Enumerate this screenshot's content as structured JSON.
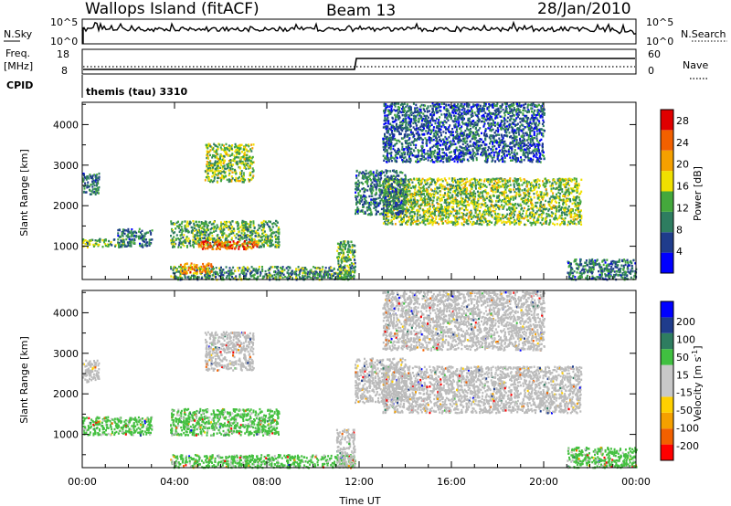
{
  "header": {
    "title": "Wallops Island (fitACF)",
    "beam": "Beam 13",
    "date": "28/Jan/2010"
  },
  "top_panels": {
    "nsky_label": "N.Sky",
    "nsky_ticks": [
      "10^5",
      "10^0"
    ],
    "nsearch_label": "N.Search",
    "nsearch_ticks": [
      "10^5",
      "10^0"
    ],
    "freq_label_1": "Freq.",
    "freq_label_2": "[MHz]",
    "freq_ticks": [
      "18",
      "8"
    ],
    "nave_label": "Nave",
    "nave_ticks": [
      "60",
      "0"
    ],
    "cpid_label": "CPID",
    "cpid_text": "themis (tau) 3310"
  },
  "colors": {
    "power_scale": [
      "#0000ff",
      "#1f3c8c",
      "#2e7d60",
      "#44a83c",
      "#f0e000",
      "#f5a000",
      "#f26000",
      "#e00000"
    ],
    "velocity_scale": [
      "#ff0000",
      "#f26000",
      "#f5a000",
      "#ffd000",
      "#c8c8c8",
      "#c8c8c8",
      "#40c040",
      "#2e7d60",
      "#1f3c8c",
      "#0000ff"
    ],
    "ground_scatter": "#bbbbbb"
  },
  "chart_data": [
    {
      "type": "heatmap",
      "name": "power",
      "xlabel": "",
      "ylabel": "Slant Range [km]",
      "x_ticks": [
        "00:00",
        "04:00",
        "08:00",
        "12:00",
        "16:00",
        "20:00",
        "00:00"
      ],
      "xlim_hours": [
        0,
        24
      ],
      "y_ticks": [
        1000,
        2000,
        3000,
        4000
      ],
      "ylim_km": [
        180,
        4550
      ],
      "colorbar_label": "Power [dB]",
      "colorbar_ticks": [
        4,
        8,
        12,
        16,
        20,
        24,
        28
      ],
      "colorbar_range": [
        0,
        30
      ],
      "regions": [
        {
          "t": [
            0.0,
            0.7
          ],
          "r": [
            2300,
            2850
          ],
          "level": 8
        },
        {
          "t": [
            0.0,
            1.8
          ],
          "r": [
            1000,
            1200
          ],
          "level": 12
        },
        {
          "t": [
            1.5,
            3.0
          ],
          "r": [
            1000,
            1450
          ],
          "level": 8
        },
        {
          "t": [
            3.8,
            8.5
          ],
          "r": [
            1000,
            1650
          ],
          "level": 12
        },
        {
          "t": [
            5.0,
            7.6
          ],
          "r": [
            950,
            1150
          ],
          "level": 26
        },
        {
          "t": [
            5.3,
            7.4
          ],
          "r": [
            2600,
            3550
          ],
          "level": 14
        },
        {
          "t": [
            3.8,
            11.8
          ],
          "r": [
            200,
            520
          ],
          "level": 10
        },
        {
          "t": [
            4.2,
            5.6
          ],
          "r": [
            350,
            600
          ],
          "level": 22
        },
        {
          "t": [
            11.0,
            11.8
          ],
          "r": [
            200,
            1150
          ],
          "level": 12
        },
        {
          "t": [
            13.0,
            21.6
          ],
          "r": [
            1550,
            2700
          ],
          "level": 14
        },
        {
          "t": [
            13.0,
            20.0
          ],
          "r": [
            3100,
            4550
          ],
          "level": 6
        },
        {
          "t": [
            11.8,
            14.0
          ],
          "r": [
            1800,
            2900
          ],
          "level": 8
        },
        {
          "t": [
            21.0,
            24.0
          ],
          "r": [
            200,
            700
          ],
          "level": 8
        }
      ]
    },
    {
      "type": "heatmap",
      "name": "velocity",
      "xlabel": "Time UT",
      "ylabel": "Slant Range [km]",
      "x_ticks": [
        "00:00",
        "04:00",
        "08:00",
        "12:00",
        "16:00",
        "20:00",
        "00:00"
      ],
      "xlim_hours": [
        0,
        24
      ],
      "y_ticks": [
        1000,
        2000,
        3000,
        4000
      ],
      "ylim_km": [
        180,
        4550
      ],
      "colorbar_label": "Velocity [m s",
      "colorbar_label_sup": "-1",
      "colorbar_label_end": "]",
      "colorbar_ticks": [
        200,
        100,
        50,
        15,
        -15,
        -50,
        -100,
        -200
      ],
      "regions": [
        {
          "t": [
            0.0,
            0.7
          ],
          "r": [
            2300,
            2850
          ],
          "v": 0
        },
        {
          "t": [
            0.0,
            3.0
          ],
          "r": [
            1000,
            1450
          ],
          "v": 40
        },
        {
          "t": [
            3.8,
            8.5
          ],
          "r": [
            1000,
            1650
          ],
          "v": 30
        },
        {
          "t": [
            5.3,
            7.4
          ],
          "r": [
            2600,
            3550
          ],
          "v": 0
        },
        {
          "t": [
            3.8,
            11.8
          ],
          "r": [
            200,
            520
          ],
          "v": 20
        },
        {
          "t": [
            11.0,
            11.8
          ],
          "r": [
            200,
            1150
          ],
          "v": 0
        },
        {
          "t": [
            13.0,
            21.6
          ],
          "r": [
            1550,
            2700
          ],
          "v": 0
        },
        {
          "t": [
            13.0,
            20.0
          ],
          "r": [
            3100,
            4550
          ],
          "v": 0
        },
        {
          "t": [
            11.8,
            14.0
          ],
          "r": [
            1800,
            2900
          ],
          "v": 0
        },
        {
          "t": [
            21.0,
            24.0
          ],
          "r": [
            200,
            700
          ],
          "v": 40
        }
      ]
    }
  ]
}
